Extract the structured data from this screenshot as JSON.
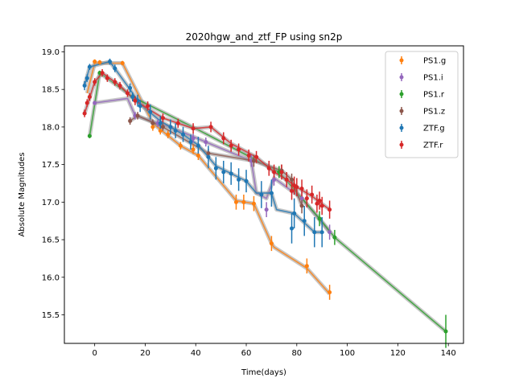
{
  "chart_data": {
    "type": "scatter",
    "title": "2020hgw_and_ztf_FP using sn2p",
    "xlabel": "Time(days)",
    "ylabel": "Absolute Magnitudes",
    "xlim": [
      -12,
      146
    ],
    "ylim": [
      19.08,
      15.12
    ],
    "y_inverted": true,
    "xticks": [
      0,
      20,
      40,
      60,
      80,
      100,
      120,
      140
    ],
    "yticks": [
      19.0,
      18.5,
      18.0,
      17.5,
      17.0,
      16.5,
      16.0,
      15.5
    ],
    "ytick_labels": [
      "19.0",
      "18.5",
      "18.0",
      "17.5",
      "17.0",
      "16.5",
      "16.0",
      "15.5"
    ],
    "legend_position": "top-right",
    "grid": false,
    "series": [
      {
        "name": "PS1.g",
        "color": "#ff7f0e",
        "points": [
          [
            0,
            18.87,
            0.03
          ],
          [
            2,
            18.86,
            0.03
          ],
          [
            11,
            18.85,
            0.03
          ],
          [
            23,
            18.0,
            0.05
          ],
          [
            26,
            17.95,
            0.05
          ],
          [
            29,
            17.9,
            0.05
          ],
          [
            34,
            17.75,
            0.05
          ],
          [
            39,
            17.7,
            0.06
          ],
          [
            41,
            17.62,
            0.06
          ],
          [
            56,
            17.0,
            0.1
          ],
          [
            59,
            17.0,
            0.1
          ],
          [
            63,
            16.98,
            0.1
          ],
          [
            70,
            16.45,
            0.1
          ],
          [
            84,
            16.15,
            0.1
          ],
          [
            93,
            15.8,
            0.1
          ]
        ],
        "model": [
          [
            -3,
            18.45
          ],
          [
            0,
            18.85
          ],
          [
            11,
            18.85
          ],
          [
            23,
            18.05
          ],
          [
            34,
            17.75
          ],
          [
            41,
            17.62
          ],
          [
            56,
            17.02
          ],
          [
            63,
            16.98
          ],
          [
            70,
            16.45
          ],
          [
            71,
            16.4
          ],
          [
            84,
            16.12
          ],
          [
            93,
            15.78
          ]
        ]
      },
      {
        "name": "PS1.i",
        "color": "#9467bd",
        "points": [
          [
            0,
            18.32,
            0.03
          ],
          [
            16,
            18.15,
            0.05
          ],
          [
            25,
            18.05,
            0.05
          ],
          [
            30,
            18.0,
            0.05
          ],
          [
            39,
            17.85,
            0.06
          ],
          [
            44,
            17.8,
            0.06
          ],
          [
            62,
            17.55,
            0.08
          ],
          [
            68,
            16.9,
            0.1
          ],
          [
            71,
            17.3,
            0.08
          ],
          [
            82,
            17.05,
            0.1
          ],
          [
            93,
            16.6,
            0.1
          ]
        ],
        "model": [
          [
            0,
            18.32
          ],
          [
            13,
            18.38
          ],
          [
            16,
            18.15
          ],
          [
            30,
            18.0
          ],
          [
            44,
            17.8
          ],
          [
            62,
            17.55
          ],
          [
            64,
            17.12
          ],
          [
            68,
            17.05
          ],
          [
            71,
            17.32
          ],
          [
            82,
            17.05
          ],
          [
            93,
            16.6
          ]
        ]
      },
      {
        "name": "PS1.r",
        "color": "#2ca02c",
        "points": [
          [
            -2,
            17.88,
            0.03
          ],
          [
            2,
            18.72,
            0.03
          ],
          [
            15,
            18.4,
            0.05
          ],
          [
            73,
            17.4,
            0.08
          ],
          [
            89,
            16.78,
            0.1
          ],
          [
            95,
            16.53,
            0.1
          ],
          [
            139,
            15.28,
            0.22
          ]
        ],
        "model": [
          [
            -2,
            17.88
          ],
          [
            2,
            18.72
          ],
          [
            15,
            18.4
          ],
          [
            40,
            17.98
          ],
          [
            73,
            17.4
          ],
          [
            89,
            16.78
          ],
          [
            95,
            16.53
          ],
          [
            139,
            15.28
          ]
        ]
      },
      {
        "name": "PS1.z",
        "color": "#8c564b",
        "points": [
          [
            14,
            18.08,
            0.05
          ],
          [
            17,
            18.15,
            0.05
          ],
          [
            23,
            18.05,
            0.05
          ],
          [
            27,
            18.0,
            0.05
          ],
          [
            45,
            17.65,
            0.06
          ],
          [
            63,
            17.55,
            0.08
          ],
          [
            74,
            17.42,
            0.08
          ],
          [
            78,
            17.3,
            0.08
          ],
          [
            82,
            16.95,
            0.1
          ]
        ],
        "model": [
          [
            14,
            18.08
          ],
          [
            17,
            18.15
          ],
          [
            27,
            18.0
          ],
          [
            45,
            17.65
          ],
          [
            63,
            17.55
          ],
          [
            74,
            17.42
          ],
          [
            78,
            17.3
          ],
          [
            82,
            16.95
          ]
        ]
      },
      {
        "name": "ZTF.g",
        "color": "#1f77b4",
        "points": [
          [
            -4,
            18.55,
            0.06
          ],
          [
            -3,
            18.65,
            0.05
          ],
          [
            -2,
            18.8,
            0.04
          ],
          [
            6,
            18.87,
            0.04
          ],
          [
            8,
            18.78,
            0.05
          ],
          [
            14,
            18.52,
            0.06
          ],
          [
            15,
            18.4,
            0.06
          ],
          [
            17,
            18.35,
            0.08
          ],
          [
            18,
            18.28,
            0.08
          ],
          [
            22,
            18.2,
            0.1
          ],
          [
            26,
            18.05,
            0.1
          ],
          [
            30,
            18.0,
            0.1
          ],
          [
            32,
            17.95,
            0.1
          ],
          [
            35,
            17.9,
            0.1
          ],
          [
            38,
            17.8,
            0.1
          ],
          [
            41,
            17.75,
            0.12
          ],
          [
            45,
            17.6,
            0.15
          ],
          [
            48,
            17.45,
            0.15
          ],
          [
            51,
            17.4,
            0.15
          ],
          [
            54,
            17.38,
            0.15
          ],
          [
            57,
            17.3,
            0.15
          ],
          [
            60,
            17.28,
            0.15
          ],
          [
            66,
            17.1,
            0.18
          ],
          [
            70,
            17.12,
            0.18
          ],
          [
            78,
            16.65,
            0.2
          ],
          [
            79,
            16.85,
            0.2
          ],
          [
            83,
            16.75,
            0.2
          ],
          [
            87,
            16.6,
            0.2
          ],
          [
            90,
            16.6,
            0.2
          ]
        ],
        "model": [
          [
            -4,
            18.55
          ],
          [
            -2,
            18.8
          ],
          [
            6,
            18.87
          ],
          [
            14,
            18.5
          ],
          [
            18,
            18.3
          ],
          [
            26,
            18.08
          ],
          [
            35,
            17.9
          ],
          [
            41,
            17.76
          ],
          [
            45,
            17.6
          ],
          [
            48,
            17.48
          ],
          [
            54,
            17.38
          ],
          [
            60,
            17.28
          ],
          [
            64,
            17.12
          ],
          [
            70,
            17.12
          ],
          [
            72,
            16.9
          ],
          [
            79,
            16.85
          ],
          [
            87,
            16.6
          ],
          [
            90,
            16.6
          ]
        ]
      },
      {
        "name": "ZTF.r",
        "color": "#d62728",
        "points": [
          [
            -4,
            18.18,
            0.05
          ],
          [
            -3,
            18.32,
            0.05
          ],
          [
            -2,
            18.4,
            0.05
          ],
          [
            0,
            18.6,
            0.05
          ],
          [
            3,
            18.72,
            0.05
          ],
          [
            5,
            18.65,
            0.05
          ],
          [
            8,
            18.6,
            0.05
          ],
          [
            10,
            18.55,
            0.05
          ],
          [
            13,
            18.45,
            0.05
          ],
          [
            16,
            18.35,
            0.06
          ],
          [
            21,
            18.28,
            0.06
          ],
          [
            27,
            18.12,
            0.06
          ],
          [
            33,
            18.05,
            0.06
          ],
          [
            39,
            17.98,
            0.07
          ],
          [
            46,
            18.0,
            0.07
          ],
          [
            51,
            17.85,
            0.08
          ],
          [
            54,
            17.75,
            0.08
          ],
          [
            57,
            17.7,
            0.08
          ],
          [
            61,
            17.62,
            0.08
          ],
          [
            64,
            17.6,
            0.08
          ],
          [
            69,
            17.45,
            0.1
          ],
          [
            71,
            17.4,
            0.1
          ],
          [
            74,
            17.4,
            0.1
          ],
          [
            76,
            17.3,
            0.1
          ],
          [
            78,
            17.15,
            0.12
          ],
          [
            79,
            17.22,
            0.12
          ],
          [
            80,
            17.2,
            0.12
          ],
          [
            82,
            17.18,
            0.12
          ],
          [
            84,
            17.05,
            0.12
          ],
          [
            86,
            17.1,
            0.12
          ],
          [
            88,
            16.98,
            0.12
          ],
          [
            89,
            17.02,
            0.12
          ],
          [
            90,
            16.95,
            0.12
          ],
          [
            93,
            16.9,
            0.12
          ]
        ],
        "model": [
          [
            -4,
            18.18
          ],
          [
            0,
            18.6
          ],
          [
            3,
            18.72
          ],
          [
            10,
            18.55
          ],
          [
            16,
            18.35
          ],
          [
            27,
            18.12
          ],
          [
            39,
            17.98
          ],
          [
            46,
            18.0
          ],
          [
            54,
            17.78
          ],
          [
            64,
            17.6
          ],
          [
            71,
            17.4
          ],
          [
            76,
            17.3
          ],
          [
            80,
            17.2
          ],
          [
            86,
            17.08
          ],
          [
            93,
            16.9
          ]
        ]
      }
    ]
  }
}
